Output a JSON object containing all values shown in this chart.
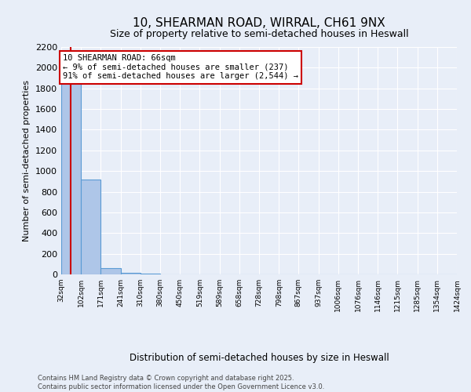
{
  "title_line1": "10, SHEARMAN ROAD, WIRRAL, CH61 9NX",
  "title_line2": "Size of property relative to semi-detached houses in Heswall",
  "xlabel": "Distribution of semi-detached houses by size in Heswall",
  "ylabel": "Number of semi-detached properties",
  "annotation_title": "10 SHEARMAN ROAD: 66sqm",
  "annotation_line1": "← 9% of semi-detached houses are smaller (237)",
  "annotation_line2": "91% of semi-detached houses are larger (2,544) →",
  "property_size": 66,
  "bin_edges": [
    32,
    102,
    171,
    241,
    310,
    380,
    450,
    519,
    589,
    658,
    728,
    798,
    867,
    937,
    1006,
    1076,
    1146,
    1215,
    1285,
    1354,
    1424
  ],
  "bin_labels": [
    "32sqm",
    "102sqm",
    "171sqm",
    "241sqm",
    "310sqm",
    "380sqm",
    "450sqm",
    "519sqm",
    "589sqm",
    "658sqm",
    "728sqm",
    "798sqm",
    "867sqm",
    "937sqm",
    "1006sqm",
    "1076sqm",
    "1146sqm",
    "1215sqm",
    "1285sqm",
    "1354sqm",
    "1424sqm"
  ],
  "counts": [
    1850,
    920,
    60,
    12,
    5,
    2,
    1,
    1,
    0,
    0,
    0,
    0,
    0,
    0,
    0,
    0,
    0,
    0,
    0,
    0
  ],
  "bar_color": "#aec6e8",
  "bar_edge_color": "#5a9bd4",
  "red_line_color": "#cc0000",
  "annotation_box_color": "#cc0000",
  "background_color": "#e8eef8",
  "ylim": [
    0,
    2200
  ],
  "yticks": [
    0,
    200,
    400,
    600,
    800,
    1000,
    1200,
    1400,
    1600,
    1800,
    2000,
    2200
  ],
  "footer_line1": "Contains HM Land Registry data © Crown copyright and database right 2025.",
  "footer_line2": "Contains public sector information licensed under the Open Government Licence v3.0."
}
